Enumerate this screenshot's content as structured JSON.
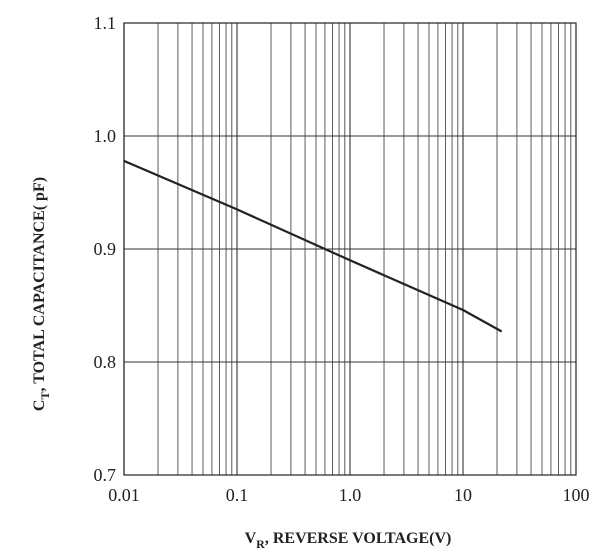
{
  "chart_data": {
    "type": "line",
    "x_scale": "log",
    "xlim": [
      0.01,
      100
    ],
    "ylim": [
      0.7,
      1.1
    ],
    "x_ticks": [
      0.01,
      0.1,
      1,
      10,
      100
    ],
    "x_tick_labels": [
      "0.01",
      "0.1",
      "1.0",
      "10",
      "100"
    ],
    "y_ticks": [
      0.7,
      0.8,
      0.9,
      1.0,
      1.1
    ],
    "y_tick_labels": [
      "0.7",
      "0.8",
      "0.9",
      "1.0",
      "1.1"
    ],
    "grid": true,
    "xlabel": {
      "main": "V",
      "sub": "R",
      "rest": ", REVERSE VOLTAGE(V)"
    },
    "ylabel": {
      "main": "C",
      "sub": "T",
      "rest": ", TOTAL CAPACITANCE( pF)"
    },
    "series": [
      {
        "x": [
          0.01,
          0.1,
          1,
          10,
          22
        ],
        "y": [
          0.978,
          0.935,
          0.89,
          0.846,
          0.827
        ],
        "color": "#222222"
      }
    ]
  }
}
